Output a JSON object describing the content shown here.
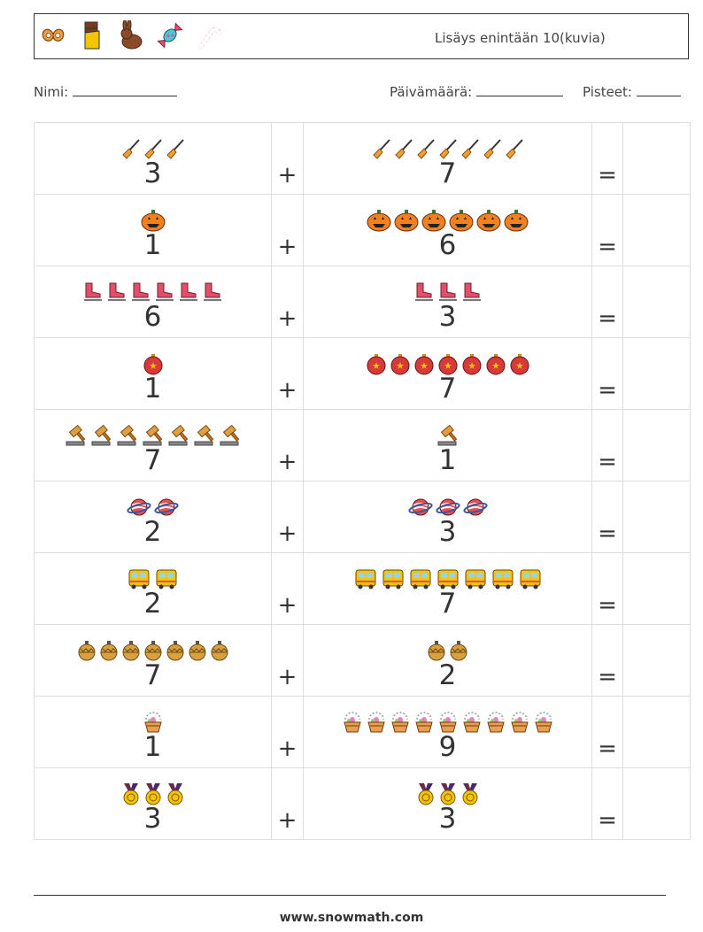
{
  "header": {
    "title": "Lisäys enintään 10(kuvia)",
    "icons": [
      "pretzel-icon",
      "chocolate-bar-icon",
      "chocolate-bunny-icon",
      "candy-icon",
      "candy-cane-icon"
    ]
  },
  "meta": {
    "name_label": "Nimi:",
    "date_label": "Päivämäärä:",
    "score_label": "Pisteet:"
  },
  "operators": {
    "plus": "+",
    "equals": "="
  },
  "problems": [
    {
      "left": {
        "count": 3,
        "num": "3",
        "icon": "broom-icon"
      },
      "right": {
        "count": 7,
        "num": "7",
        "icon": "broom-icon"
      }
    },
    {
      "left": {
        "count": 1,
        "num": "1",
        "icon": "pumpkin-icon"
      },
      "right": {
        "count": 6,
        "num": "6",
        "icon": "pumpkin-icon"
      }
    },
    {
      "left": {
        "count": 6,
        "num": "6",
        "icon": "ice-skate-icon"
      },
      "right": {
        "count": 3,
        "num": "3",
        "icon": "ice-skate-icon"
      }
    },
    {
      "left": {
        "count": 1,
        "num": "1",
        "icon": "ornament-icon"
      },
      "right": {
        "count": 7,
        "num": "7",
        "icon": "ornament-icon"
      }
    },
    {
      "left": {
        "count": 7,
        "num": "7",
        "icon": "gavel-icon"
      },
      "right": {
        "count": 1,
        "num": "1",
        "icon": "gavel-icon"
      }
    },
    {
      "left": {
        "count": 2,
        "num": "2",
        "icon": "planet-icon"
      },
      "right": {
        "count": 3,
        "num": "3",
        "icon": "planet-icon"
      }
    },
    {
      "left": {
        "count": 2,
        "num": "2",
        "icon": "bus-icon"
      },
      "right": {
        "count": 7,
        "num": "7",
        "icon": "bus-icon"
      }
    },
    {
      "left": {
        "count": 7,
        "num": "7",
        "icon": "bauble-icon"
      },
      "right": {
        "count": 2,
        "num": "2",
        "icon": "bauble-icon"
      }
    },
    {
      "left": {
        "count": 1,
        "num": "1",
        "icon": "easter-basket-icon"
      },
      "right": {
        "count": 9,
        "num": "9",
        "icon": "easter-basket-icon"
      }
    },
    {
      "left": {
        "count": 3,
        "num": "3",
        "icon": "medal-icon"
      },
      "right": {
        "count": 3,
        "num": "3",
        "icon": "medal-icon"
      }
    }
  ],
  "footer": {
    "url": "www.snowmath.com"
  }
}
